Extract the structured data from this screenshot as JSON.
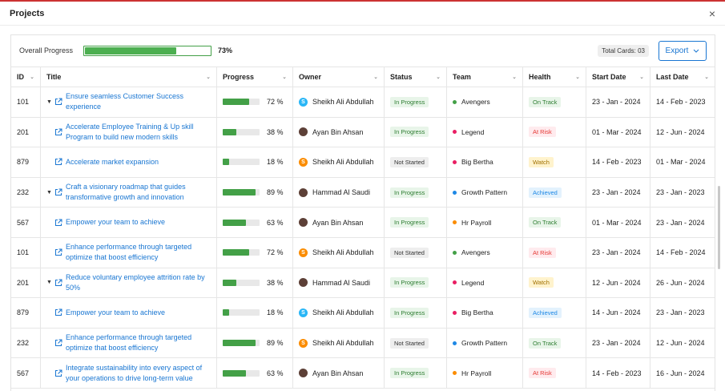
{
  "dialog": {
    "title": "Projects",
    "close_symbol": "×"
  },
  "toolbar": {
    "progress_label": "Overall Progress",
    "progress_value": 73,
    "progress_text": "73%",
    "total_cards": "Total Cards: 03",
    "export_label": "Export"
  },
  "columns": [
    "ID",
    "Title",
    "Progress",
    "Owner",
    "Status",
    "Team",
    "Health",
    "Start Date",
    "Last Date"
  ],
  "colors": {
    "link": "#1976d2",
    "progress": "#43a047",
    "status": {
      "In Progress": {
        "bg": "#e8f5e9",
        "fg": "#2e7d32"
      },
      "Not Started": {
        "bg": "#eeeeee",
        "fg": "#333333"
      }
    },
    "health": {
      "On Track": {
        "bg": "#e8f5e9",
        "fg": "#2e7d32"
      },
      "At Risk": {
        "bg": "#ffebee",
        "fg": "#e53935"
      },
      "Watch": {
        "bg": "#fff3cd",
        "fg": "#a07000"
      },
      "Achieved": {
        "bg": "#e3f2fd",
        "fg": "#1e88e5"
      }
    },
    "teams": {
      "Avengers": "#43a047",
      "Legend": "#e91e63",
      "Big Bertha": "#e91e63",
      "Growth Pattern": "#1e88e5",
      "Hr Payroll": "#fb8c00"
    },
    "owners": {
      "Sheikh Ali Abdullah": [
        "#29b6f6",
        "#fb8c00"
      ],
      "Ayan Bin Ahsan": "#5d4037",
      "Hammad Al Saudi": "#5d4037"
    }
  },
  "rows": [
    {
      "id": "101",
      "expand": "caret-down",
      "title": "Ensure seamless Customer Success experience",
      "progress": 72,
      "progress_text": "72 %",
      "owner": "Sheikh Ali Abdullah",
      "owner_avatar": "S",
      "avatar_color": "#29b6f6",
      "status": "In Progress",
      "team": "Avengers",
      "health": "On Track",
      "start": "23 - Jan - 2024",
      "last": "14 - Feb - 2023"
    },
    {
      "id": "201",
      "expand": "",
      "title": "Accelerate Employee Training & Up skill Program to build new modern skills",
      "progress": 38,
      "progress_text": "38 %",
      "owner": "Ayan Bin Ahsan",
      "owner_avatar": "photo",
      "avatar_color": "#5d4037",
      "status": "In Progress",
      "team": "Legend",
      "health": "At Risk",
      "start": "01 - Mar - 2024",
      "last": "12 - Jun - 2024"
    },
    {
      "id": "879",
      "expand": "",
      "title": "Accelerate market expansion",
      "progress": 18,
      "progress_text": "18 %",
      "owner": "Sheikh Ali Abdullah",
      "owner_avatar": "S",
      "avatar_color": "#fb8c00",
      "status": "Not Started",
      "team": "Big Bertha",
      "health": "Watch",
      "start": "14 - Feb - 2023",
      "last": "01 - Mar - 2024"
    },
    {
      "id": "232",
      "expand": "caret-down",
      "title": "Craft a visionary roadmap that guides transformative growth and innovation",
      "progress": 89,
      "progress_text": "89 %",
      "owner": "Hammad Al Saudi",
      "owner_avatar": "photo",
      "avatar_color": "#5d4037",
      "status": "In Progress",
      "team": "Growth Pattern",
      "health": "Achieved",
      "start": "23 - Jan - 2024",
      "last": "23 - Jan - 2023"
    },
    {
      "id": "567",
      "expand": "",
      "title": "Empower your team to achieve",
      "progress": 63,
      "progress_text": "63 %",
      "owner": "Ayan Bin Ahsan",
      "owner_avatar": "photo",
      "avatar_color": "#5d4037",
      "status": "In Progress",
      "team": "Hr Payroll",
      "health": "On Track",
      "start": "01 - Mar - 2024",
      "last": "23 - Jan - 2024"
    },
    {
      "id": "101",
      "expand": "",
      "title": "Enhance performance through targeted optimize that boost efficiency",
      "progress": 72,
      "progress_text": "72 %",
      "owner": "Sheikh Ali Abdullah",
      "owner_avatar": "S",
      "avatar_color": "#fb8c00",
      "status": "Not Started",
      "team": "Avengers",
      "health": "At Risk",
      "start": "23 - Jan - 2024",
      "last": "14 - Feb - 2024"
    },
    {
      "id": "201",
      "expand": "caret-down",
      "title": "Reduce voluntary employee attrition rate by 50%",
      "progress": 38,
      "progress_text": "38 %",
      "owner": "Hammad Al Saudi",
      "owner_avatar": "photo",
      "avatar_color": "#5d4037",
      "status": "In Progress",
      "team": "Legend",
      "health": "Watch",
      "start": "12 - Jun - 2024",
      "last": "26 - Jun - 2024"
    },
    {
      "id": "879",
      "expand": "",
      "title": "Empower your team to achieve",
      "progress": 18,
      "progress_text": "18 %",
      "owner": "Sheikh Ali Abdullah",
      "owner_avatar": "S",
      "avatar_color": "#29b6f6",
      "status": "In Progress",
      "team": "Big Bertha",
      "health": "Achieved",
      "start": "14 - Jun - 2024",
      "last": "23 - Jan - 2023"
    },
    {
      "id": "232",
      "expand": "",
      "title": "Enhance performance through targeted optimize that boost efficiency",
      "progress": 89,
      "progress_text": "89 %",
      "owner": "Sheikh Ali Abdullah",
      "owner_avatar": "S",
      "avatar_color": "#fb8c00",
      "status": "Not Started",
      "team": "Growth Pattern",
      "health": "On Track",
      "start": "23 - Jan - 2024",
      "last": "12 - Jun - 2024"
    },
    {
      "id": "567",
      "expand": "",
      "title": "Integrate sustainability into every aspect of your operations to drive long-term value",
      "progress": 63,
      "progress_text": "63 %",
      "owner": "Ayan Bin Ahsan",
      "owner_avatar": "photo",
      "avatar_color": "#5d4037",
      "status": "In Progress",
      "team": "Hr Payroll",
      "health": "At Risk",
      "start": "14 - Feb - 2023",
      "last": "16 - Jun - 2024"
    }
  ]
}
